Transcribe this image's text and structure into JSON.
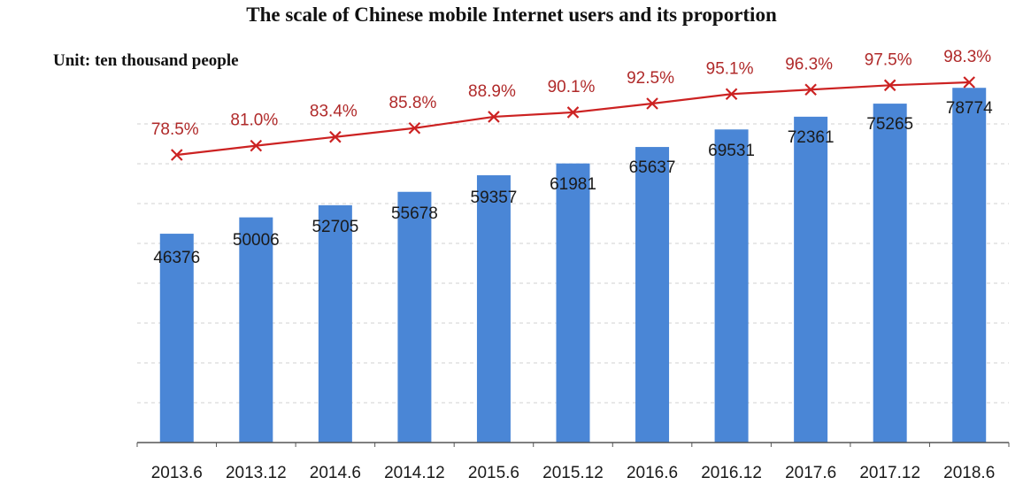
{
  "chart_data": {
    "type": "bar",
    "title": "The scale of Chinese mobile Internet users and its proportion",
    "unit_label": "Unit: ten thousand people",
    "categories": [
      "2013.6",
      "2013.12",
      "2014.6",
      "2014.12",
      "2015.6",
      "2015.12",
      "2016.6",
      "2016.12",
      "2017.6",
      "2017.12",
      "2018.6"
    ],
    "series": [
      {
        "type": "bar",
        "values": [
          46376,
          50006,
          52705,
          55678,
          59357,
          61981,
          65637,
          69531,
          72361,
          75265,
          78774
        ],
        "labels": [
          "46376",
          "50006",
          "52705",
          "55678",
          "59357",
          "61981",
          "65637",
          "69531",
          "72361",
          "75265",
          "78774"
        ],
        "color": "#4a86d6"
      },
      {
        "type": "line",
        "values": [
          78.5,
          81.0,
          83.4,
          85.8,
          88.9,
          90.1,
          92.5,
          95.1,
          96.3,
          97.5,
          98.3
        ],
        "labels": [
          "78.5%",
          "81.0%",
          "83.4%",
          "85.8%",
          "88.9%",
          "90.1%",
          "92.5%",
          "95.1%",
          "96.3%",
          "97.5%",
          "98.3%"
        ],
        "color": "#cc2222"
      }
    ],
    "ylim": [
      0,
      80000
    ],
    "y2lim": [
      0,
      100
    ],
    "grid": true,
    "grid_color": "#d0d0d0",
    "axis_color": "#555555"
  }
}
